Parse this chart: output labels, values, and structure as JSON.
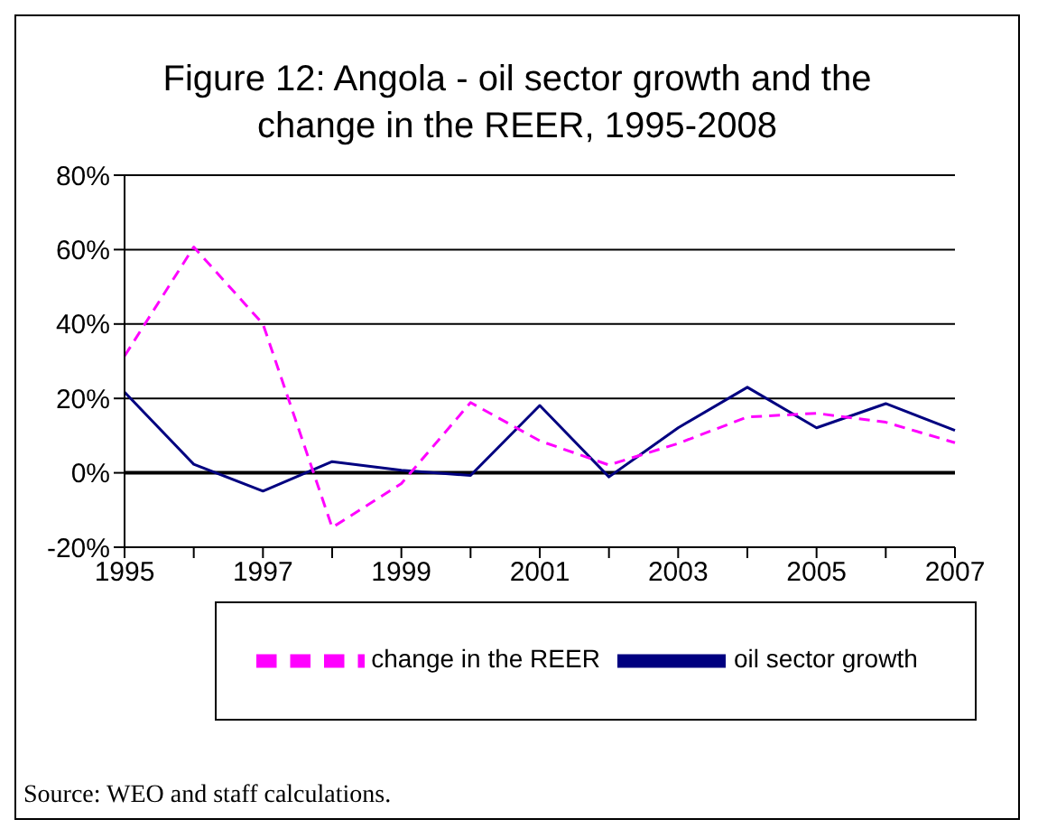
{
  "chart_data": {
    "type": "line",
    "title": "Figure 12: Angola - oil sector growth and the change in the REER, 1995-2008",
    "categories": [
      "1995",
      null,
      "1997",
      null,
      "1999",
      null,
      "2001",
      null,
      "2003",
      null,
      "2005",
      null,
      "2007"
    ],
    "series": [
      {
        "name": "oil sector growth",
        "color": "#000080",
        "line_style": "solid",
        "values": [
          21.7,
          2.3,
          -4.9,
          3,
          0.7,
          -0.7,
          18.1,
          -1.1,
          12.1,
          23,
          12.1,
          18.6,
          11.4
        ]
      },
      {
        "name": "change in the REER",
        "color": "#ff00ff",
        "line_style": "dashed",
        "values": [
          31.4,
          60.7,
          40,
          -14.7,
          -2.9,
          18.9,
          8.6,
          2.1,
          7.9,
          15,
          16,
          13.6,
          8.1
        ]
      }
    ],
    "ylim": [
      -20,
      80
    ],
    "yticks": [
      {
        "value": -20,
        "label": "-20%"
      },
      {
        "value": 0,
        "label": "0%"
      },
      {
        "value": 20,
        "label": "20%"
      },
      {
        "value": 40,
        "label": "40%"
      },
      {
        "value": 60,
        "label": "60%"
      },
      {
        "value": 80,
        "label": "80%"
      }
    ],
    "grid": "y",
    "legend": "bottom",
    "marker": "none",
    "annotations": [
      "Source: WEO and staff calculations."
    ]
  }
}
